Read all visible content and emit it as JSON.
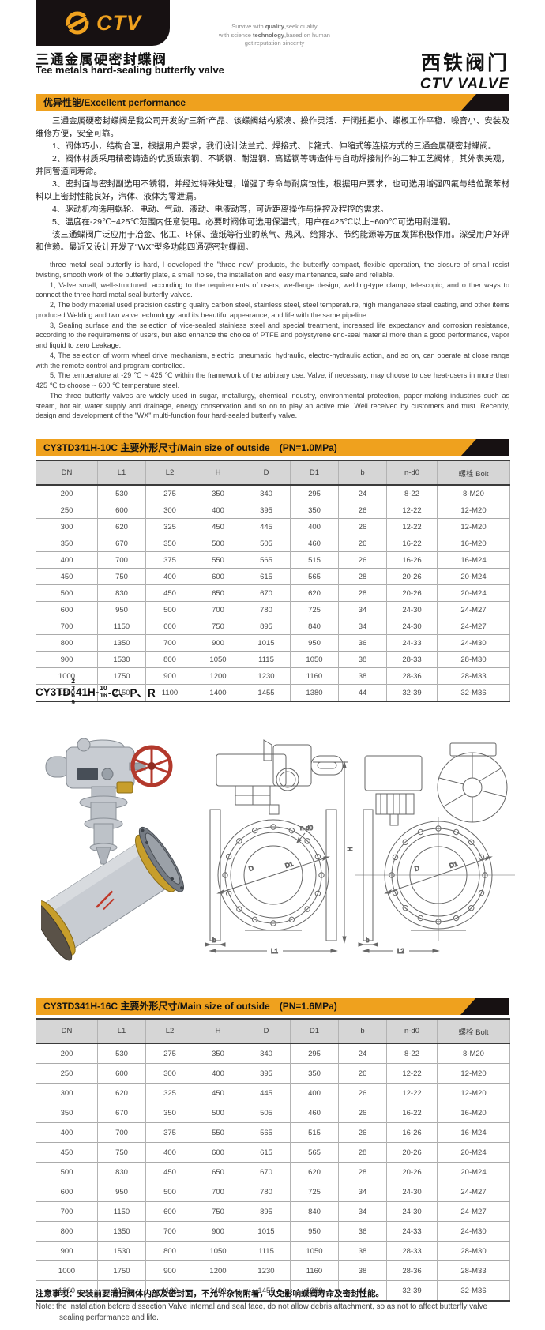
{
  "colors": {
    "accent_orange": "#EFA11E",
    "bar_black": "#171112",
    "handwheel_red": "#B3392C",
    "brass_gold": "#C79E2B"
  },
  "header": {
    "logo_text": "CTV",
    "slogan_lines": [
      [
        {
          "t": "Survive with ",
          "b": false
        },
        {
          "t": "quality",
          "b": true
        },
        {
          "t": ",seek quality",
          "b": false
        }
      ],
      [
        {
          "t": "with science ",
          "b": false
        },
        {
          "t": "technology",
          "b": true
        },
        {
          "t": ",based on human",
          "b": false
        }
      ],
      [
        {
          "t": "get reputation sincerity",
          "b": false
        }
      ]
    ],
    "title_cn": "三通金属硬密封蝶阀",
    "title_en": "Tee metals hard-sealing butterfly valve",
    "brand_cn": "西铁阀门",
    "brand_en": "CTV VALVE"
  },
  "sections": {
    "performance_bar": "优异性能/Excellent performance",
    "table1_bar": "CY3TD341H-10C 主要外形尺寸/Main size of outside　(PN=1.0MPa)",
    "table2_bar": "CY3TD341H-16C 主要外形尺寸/Main size of outside　(PN=1.6MPa)"
  },
  "performance": {
    "cn_paragraphs": [
      "三通金属硬密封蝶阀是我公司开发的“三新”产品、该蝶阀结构紧凑、操作灵活、开闭扭拒小、蝶板工作平稳、噪音小、安装及维修方便，安全可靠。",
      "1、阀体巧小，结构合理，根据用户要求，我们设计法兰式、焊接式、卡箍式、伸缩式等连接方式的三通金属硬密封蝶阀。",
      "2、阀体材质采用精密铸造的优质碳素钢、不锈钢、耐温钢、高锰钢等铸造件与自动焊接制作的二种工艺阀体，其外表美观，并同管道同寿命。",
      "3、密封面与密封副选用不锈钢，并经过特殊处理，增强了寿命与耐腐蚀性，根据用户要求，也可选用增强四氟与结位聚苯材料以上密封性能良好，汽体、液体为零泄漏。",
      "4、驱动机构选用蜗轮、电动、气动、液动、电液动等，可近距离操作与摇控及程控的需求。",
      "5、温度在-29℃~425℃范围内任意使用。必要时阀体可选用保温式，用户在425℃以上~600℃可选用耐温钢。",
      "该三通蝶阀广泛应用于冶金、化工、环保、造纸等行业的蒸气、热风、给排水、节约能源等方面发挥积极作用。深受用户好评和信赖。最近又设计开发了“WX”型多功能四通硬密封蝶阀。"
    ],
    "en_paragraphs": [
      "three metal seal butterfly is hard, I developed the \"three new\" products, the butterfly compact, flexible operation, the closure of small resist twisting, smooth work of the butterfly plate, a small noise, the installation and easy maintenance, safe and reliable.",
      "1, Valve small, well-structured, according to the requirements of users, we-flange design, welding-type clamp, telescopic, and o ther ways to connect the three hard metal seal butterfly valves.",
      "2, The body material used precision casting quality carbon steel, stainless steel, steel temperature, high manganese steel casting, and other items produced Welding and two valve technology, and its beautiful appearance, and life with the same pipeline.",
      "3, Sealing surface and the selection of vice-sealed stainless steel and special treatment, increased life expectancy and corrosion resistance, according to the requirements of users, but also enhance the choice of PTFE and polystyrene end-seal material more than a good performance, vapor and liquid to zero Leakage.",
      "4, The selection of worm wheel drive mechanism, electric, pneumatic, hydraulic, electro-hydraulic action, and so on, can operate at close range with the remote control and program-controlled.",
      "5, The temperature at -29 ℃ ~ 425 ℃ within the framework of the arbitrary use. Valve, if necessary, may choose to use heat-users in more than 425 ℃ to choose ~ 600 ℃ temperature steel.",
      "The three butterfly valves are widely used in sugar, metallurgy, chemical industry, environmental protection, paper-making industries such as steam, hot air, water supply and drainage, energy conservation and so on to play an active role. Well received by customers and trust. Recently, design and development of the \"WX\" multi-function four hard-sealed butterfly valve."
    ]
  },
  "table1": {
    "columns": [
      "DN",
      "L1",
      "L2",
      "H",
      "D",
      "D1",
      "b",
      "n-d0",
      "螺栓 Bolt"
    ],
    "rows": [
      [
        "200",
        "530",
        "275",
        "350",
        "340",
        "295",
        "24",
        "8-22",
        "8-M20"
      ],
      [
        "250",
        "600",
        "300",
        "400",
        "395",
        "350",
        "26",
        "12-22",
        "12-M20"
      ],
      [
        "300",
        "620",
        "325",
        "450",
        "445",
        "400",
        "26",
        "12-22",
        "12-M20"
      ],
      [
        "350",
        "670",
        "350",
        "500",
        "505",
        "460",
        "26",
        "16-22",
        "16-M20"
      ],
      [
        "400",
        "700",
        "375",
        "550",
        "565",
        "515",
        "26",
        "16-26",
        "16-M24"
      ],
      [
        "450",
        "750",
        "400",
        "600",
        "615",
        "565",
        "28",
        "20-26",
        "20-M24"
      ],
      [
        "500",
        "830",
        "450",
        "650",
        "670",
        "620",
        "28",
        "20-26",
        "20-M24"
      ],
      [
        "600",
        "950",
        "500",
        "700",
        "780",
        "725",
        "34",
        "24-30",
        "24-M27"
      ],
      [
        "700",
        "1150",
        "600",
        "750",
        "895",
        "840",
        "34",
        "24-30",
        "24-M27"
      ],
      [
        "800",
        "1350",
        "700",
        "900",
        "1015",
        "950",
        "36",
        "24-33",
        "24-M30"
      ],
      [
        "900",
        "1530",
        "800",
        "1050",
        "1115",
        "1050",
        "38",
        "28-33",
        "28-M30"
      ],
      [
        "1000",
        "1750",
        "900",
        "1200",
        "1230",
        "1160",
        "38",
        "28-36",
        "28-M33"
      ],
      [
        "1200",
        "2150",
        "1100",
        "1400",
        "1455",
        "1380",
        "44",
        "32-39",
        "32-M36"
      ]
    ]
  },
  "table2": {
    "columns": [
      "DN",
      "L1",
      "L2",
      "H",
      "D",
      "D1",
      "b",
      "n-d0",
      "螺栓 Bolt"
    ],
    "rows": [
      [
        "200",
        "530",
        "275",
        "350",
        "340",
        "295",
        "24",
        "8-22",
        "8-M20"
      ],
      [
        "250",
        "600",
        "300",
        "400",
        "395",
        "350",
        "26",
        "12-22",
        "12-M20"
      ],
      [
        "300",
        "620",
        "325",
        "450",
        "445",
        "400",
        "26",
        "12-22",
        "12-M20"
      ],
      [
        "350",
        "670",
        "350",
        "500",
        "505",
        "460",
        "26",
        "16-22",
        "16-M20"
      ],
      [
        "400",
        "700",
        "375",
        "550",
        "565",
        "515",
        "26",
        "16-26",
        "16-M24"
      ],
      [
        "450",
        "750",
        "400",
        "600",
        "615",
        "565",
        "28",
        "20-26",
        "20-M24"
      ],
      [
        "500",
        "830",
        "450",
        "650",
        "670",
        "620",
        "28",
        "20-26",
        "20-M24"
      ],
      [
        "600",
        "950",
        "500",
        "700",
        "780",
        "725",
        "34",
        "24-30",
        "24-M27"
      ],
      [
        "700",
        "1150",
        "600",
        "750",
        "895",
        "840",
        "34",
        "24-30",
        "24-M27"
      ],
      [
        "800",
        "1350",
        "700",
        "900",
        "1015",
        "950",
        "36",
        "24-33",
        "24-M30"
      ],
      [
        "900",
        "1530",
        "800",
        "1050",
        "1115",
        "1050",
        "38",
        "28-33",
        "28-M30"
      ],
      [
        "1000",
        "1750",
        "900",
        "1200",
        "1230",
        "1160",
        "38",
        "28-36",
        "28-M33"
      ],
      [
        "1200",
        "2150",
        "1100",
        "1400",
        "1455",
        "1380",
        "44",
        "32-39",
        "32-M36"
      ]
    ]
  },
  "model_code": {
    "prefix": "CY3TD",
    "stack1": [
      "2",
      "3",
      "6",
      "9"
    ],
    "mid": "41H-",
    "stack2": [
      "10",
      "16"
    ],
    "suffix": "-C、P、R"
  },
  "drawings": {
    "n_d0": "n-d0",
    "d": "D",
    "d1": "D1",
    "h": "H",
    "b": "b",
    "l1": "L1",
    "l2": "L2"
  },
  "note": {
    "cn": "注意事项：安装前要清扫阀体内部及密封面，不允许杂物附着，以免影响蝶阀寿命及密封性能。",
    "en": "Note: the installation before dissection Valve internal and seal face, do not allow debris attachment, so as not to affect butterfly valve sealing performance and life."
  }
}
